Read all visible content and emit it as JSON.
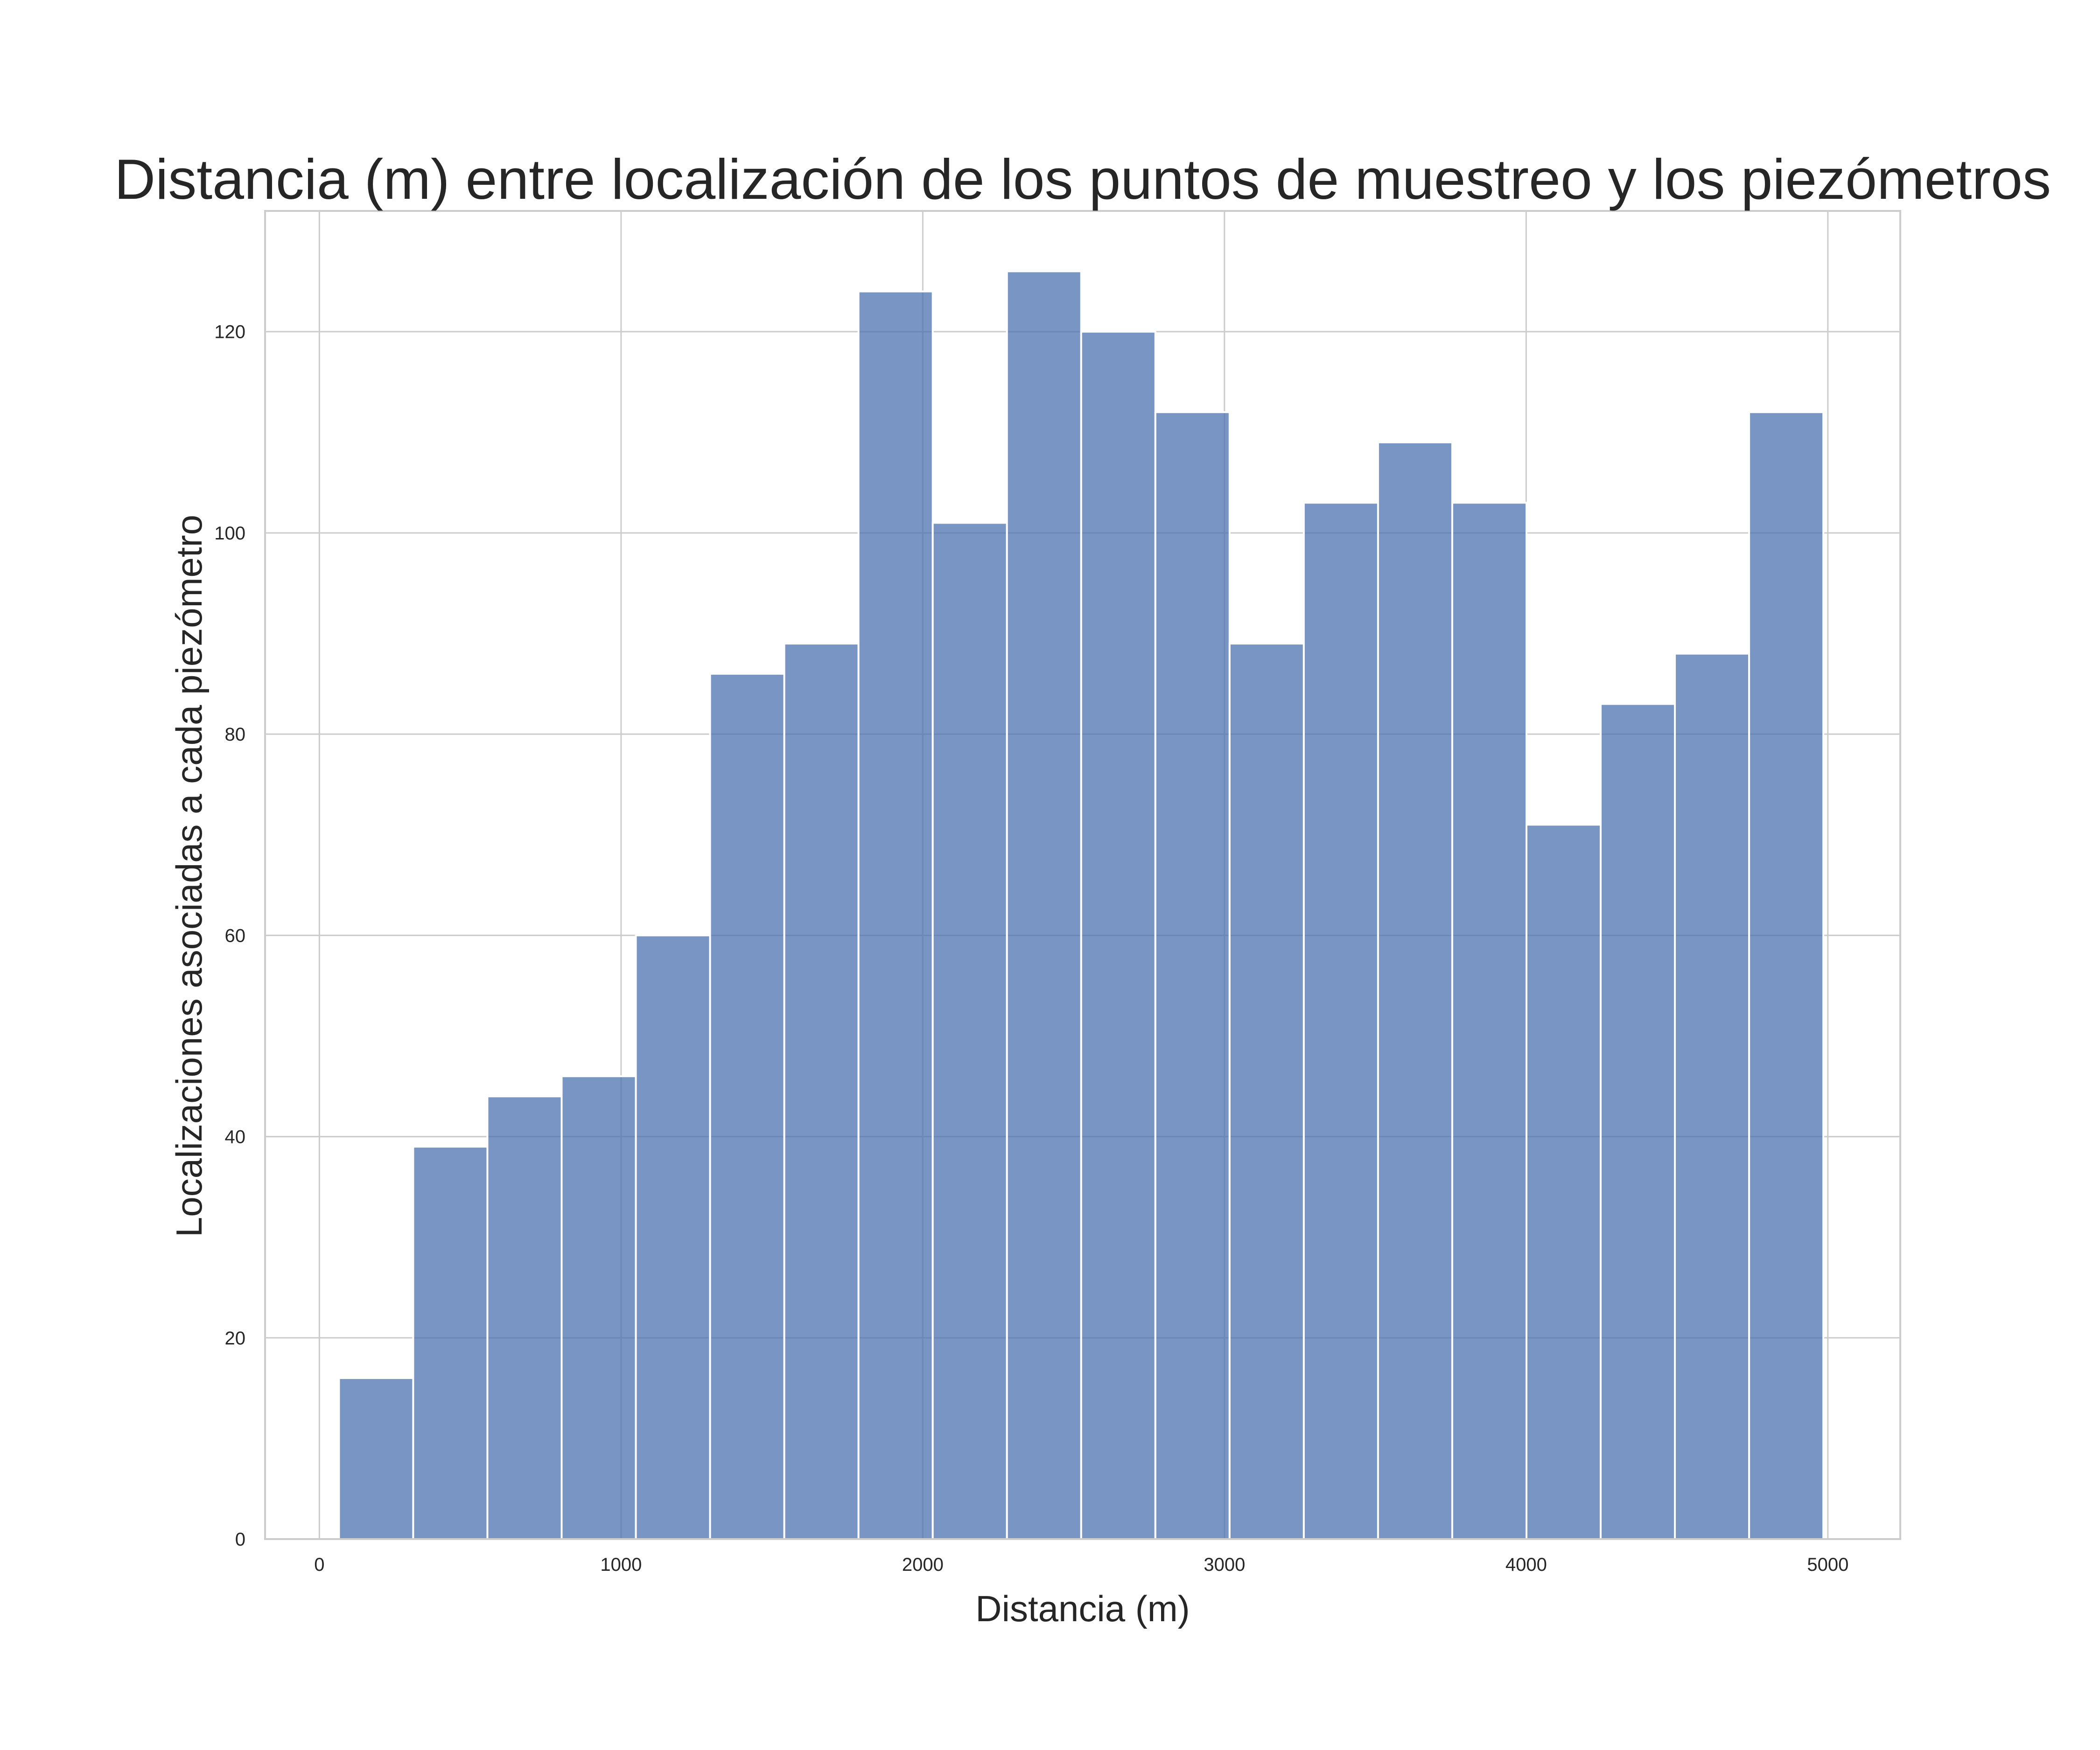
{
  "chart_data": {
    "type": "bar",
    "title": "Distancia (m) entre localización de los puntos de muestreo y los piezómetros",
    "xlabel": "Distancia (m)",
    "ylabel": "Localizaciones asociadas a cada piezómetro",
    "xlim": [
      -180,
      5240
    ],
    "ylim": [
      0,
      132
    ],
    "grid": true,
    "bar_color": "#4c72b0",
    "x_ticks": [
      0,
      1000,
      2000,
      3000,
      4000,
      5000
    ],
    "x_tick_labels": [
      "0",
      "1000",
      "2000",
      "3000",
      "4000",
      "5000"
    ],
    "y_ticks": [
      0,
      20,
      40,
      60,
      80,
      100,
      120
    ],
    "y_tick_labels": [
      "0",
      "20",
      "40",
      "60",
      "80",
      "100",
      "120"
    ],
    "bin_edges": [
      65,
      311,
      557,
      803,
      1049,
      1295,
      1541,
      1787,
      2033,
      2279,
      2525,
      2771,
      3017,
      3263,
      3509,
      3755,
      4001,
      4247,
      4493,
      4739,
      4985
    ],
    "values": [
      16,
      39,
      44,
      46,
      60,
      86,
      89,
      124,
      101,
      126,
      120,
      112,
      89,
      103,
      109,
      103,
      71,
      83,
      88,
      112
    ]
  }
}
